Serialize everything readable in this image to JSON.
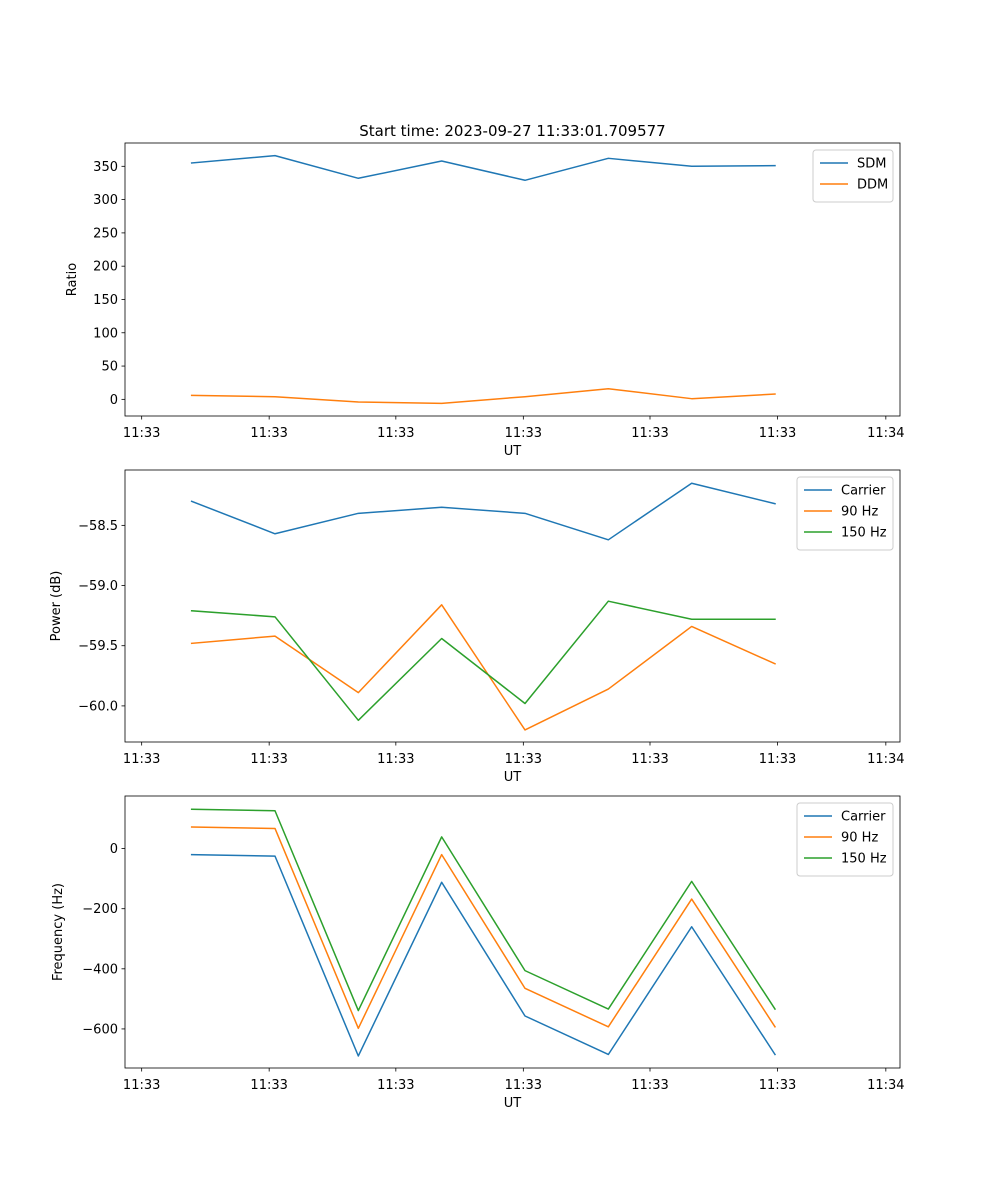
{
  "figure": {
    "suptitle": "Start time: 2023-09-27 11:33:01.709577"
  },
  "colors": {
    "c0": "#1f77b4",
    "c1": "#ff7f0e",
    "c2": "#2ca02c"
  },
  "chart_data": [
    {
      "type": "line",
      "title": "Start time: 2023-09-27 11:33:01.709577",
      "xlabel": "UT",
      "ylabel": "Ratio",
      "x": [
        1,
        2,
        3,
        4,
        5,
        6,
        7,
        8
      ],
      "xlim": [
        0.2,
        9.5
      ],
      "ylim": [
        -25,
        385
      ],
      "yticks": [
        0,
        50,
        100,
        150,
        200,
        250,
        300,
        350
      ],
      "ytick_labels": [
        "0",
        "50",
        "100",
        "150",
        "200",
        "250",
        "300",
        "350"
      ],
      "xticks": [
        0.4,
        1.93,
        3.45,
        4.98,
        6.5,
        8.03,
        9.33
      ],
      "xtick_labels": [
        "11:33",
        "11:33",
        "11:33",
        "11:33",
        "11:33",
        "11:33",
        "11:34"
      ],
      "legend": "top-right",
      "series": [
        {
          "name": "SDM",
          "color": "#1f77b4",
          "values": [
            355,
            366,
            332,
            358,
            329,
            362,
            350,
            351
          ]
        },
        {
          "name": "DDM",
          "color": "#ff7f0e",
          "values": [
            6,
            4,
            -4,
            -6,
            4,
            16,
            1,
            8
          ]
        }
      ]
    },
    {
      "type": "line",
      "title": "",
      "xlabel": "UT",
      "ylabel": "Power (dB)",
      "x": [
        1,
        2,
        3,
        4,
        5,
        6,
        7,
        8
      ],
      "xlim": [
        0.2,
        9.5
      ],
      "ylim": [
        -60.3,
        -58.04
      ],
      "yticks": [
        -60.0,
        -59.5,
        -59.0,
        -58.5
      ],
      "ytick_labels": [
        "−60.0",
        "−59.5",
        "−59.0",
        "−58.5"
      ],
      "xticks": [
        0.4,
        1.93,
        3.45,
        4.98,
        6.5,
        8.03,
        9.33
      ],
      "xtick_labels": [
        "11:33",
        "11:33",
        "11:33",
        "11:33",
        "11:33",
        "11:33",
        "11:34"
      ],
      "legend": "top-right",
      "series": [
        {
          "name": "Carrier",
          "color": "#1f77b4",
          "values": [
            -58.3,
            -58.57,
            -58.4,
            -58.35,
            -58.4,
            -58.62,
            -58.15,
            -58.32
          ]
        },
        {
          "name": "90 Hz",
          "color": "#ff7f0e",
          "values": [
            -59.48,
            -59.42,
            -59.89,
            -59.16,
            -60.2,
            -59.86,
            -59.34,
            -59.65
          ]
        },
        {
          "name": "150 Hz",
          "color": "#2ca02c",
          "values": [
            -59.21,
            -59.26,
            -60.12,
            -59.44,
            -59.98,
            -59.13,
            -59.28,
            -59.28
          ]
        }
      ]
    },
    {
      "type": "line",
      "title": "",
      "xlabel": "UT",
      "ylabel": "Frequency (Hz)",
      "x": [
        1,
        2,
        3,
        4,
        5,
        6,
        7,
        8
      ],
      "xlim": [
        0.2,
        9.5
      ],
      "ylim": [
        -730,
        175
      ],
      "yticks": [
        -600,
        -400,
        -200,
        0
      ],
      "ytick_labels": [
        "−600",
        "−400",
        "−200",
        "0"
      ],
      "xticks": [
        0.4,
        1.93,
        3.45,
        4.98,
        6.5,
        8.03,
        9.33
      ],
      "xtick_labels": [
        "11:33",
        "11:33",
        "11:33",
        "11:33",
        "11:33",
        "11:33",
        "11:34"
      ],
      "legend": "top-right",
      "series": [
        {
          "name": "Carrier",
          "color": "#1f77b4",
          "values": [
            -20,
            -25,
            -690,
            -112,
            -557,
            -685,
            -260,
            -685
          ]
        },
        {
          "name": "90 Hz",
          "color": "#ff7f0e",
          "values": [
            72,
            67,
            -598,
            -20,
            -465,
            -593,
            -168,
            -593
          ]
        },
        {
          "name": "150 Hz",
          "color": "#2ca02c",
          "values": [
            131,
            126,
            -539,
            39,
            -406,
            -534,
            -109,
            -534
          ]
        }
      ]
    }
  ]
}
